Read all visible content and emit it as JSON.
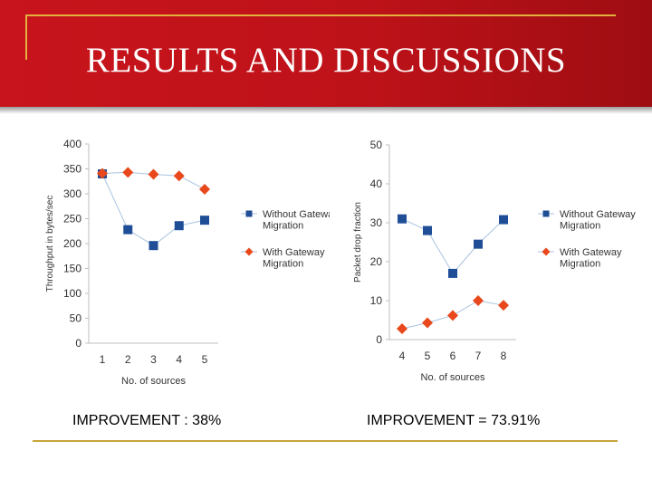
{
  "slide": {
    "title": "RESULTS AND DISCUSSIONS",
    "improvement_left": "IMPROVEMENT : 38%",
    "improvement_right": "IMPROVEMENT = 73.91%",
    "colors": {
      "banner": "#c8141c",
      "gold": "#e3b23c",
      "series_without": "#1f4e96",
      "series_with": "#e8481c"
    }
  },
  "chart_data": [
    {
      "type": "line",
      "title": "",
      "xlabel": "No. of sources",
      "ylabel": "Throughput in bytes/sec",
      "x": [
        1,
        2,
        3,
        4,
        5
      ],
      "ylim": [
        0,
        400
      ],
      "yticks": [
        0,
        50,
        100,
        150,
        200,
        250,
        300,
        350,
        400
      ],
      "grid": false,
      "legend_position": "right",
      "series": [
        {
          "name": "Without Gateway Migration",
          "marker": "square",
          "color": "#1f4e96",
          "values": [
            340,
            228,
            196,
            236,
            247
          ]
        },
        {
          "name": "With Gateway Migration",
          "marker": "diamond",
          "color": "#e8481c",
          "values": [
            341,
            343,
            339,
            336,
            309
          ]
        }
      ]
    },
    {
      "type": "line",
      "title": "",
      "xlabel": "No. of sources",
      "ylabel": "Packet drop fraction",
      "x": [
        4,
        5,
        6,
        7,
        8
      ],
      "ylim": [
        0,
        50
      ],
      "yticks": [
        0,
        10,
        20,
        30,
        40,
        50
      ],
      "grid": false,
      "legend_position": "right",
      "series": [
        {
          "name": "Without Gateway Migration",
          "marker": "square",
          "color": "#1f4e96",
          "values": [
            31,
            28,
            17,
            24.5,
            30.8
          ]
        },
        {
          "name": "With Gateway Migration",
          "marker": "diamond",
          "color": "#e8481c",
          "values": [
            2.8,
            4.3,
            6.2,
            10,
            8.8
          ]
        }
      ]
    }
  ]
}
